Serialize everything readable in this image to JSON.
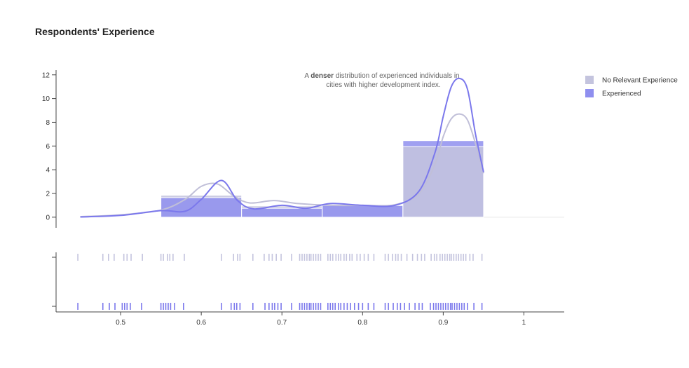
{
  "chart_data": {
    "type": "histogram+kde+rug",
    "title": "Respondents' Experience",
    "colors": {
      "No Relevant Experience": "#c4c4de",
      "Experienced": "#8f8fef",
      "kde_no_relevant": "#c0bfd8",
      "kde_experienced": "#7b78ec"
    },
    "x_axis": {
      "range": [
        0.42,
        1.05
      ],
      "ticks": [
        "0.5",
        "0.6",
        "0.7",
        "0.8",
        "0.9",
        "1"
      ]
    },
    "y_axis": {
      "range": [
        -0.6,
        12.4
      ],
      "ticks": [
        "0",
        "2",
        "4",
        "6",
        "8",
        "10",
        "12"
      ]
    },
    "legend": {
      "position": "top-right",
      "items": [
        {
          "label": "No Relevant Experience",
          "color": "#c4c4de"
        },
        {
          "label": "Experienced",
          "color": "#8f8fef"
        }
      ]
    },
    "annotation": {
      "parts": [
        {
          "text": "A ",
          "bold": false
        },
        {
          "text": "denser",
          "bold": true
        },
        {
          "text": " distribution of experienced individuals in",
          "bold": false
        }
      ],
      "line2": "cities with higher development index."
    },
    "histogram": {
      "bins": [
        [
          0.45,
          0.55
        ],
        [
          0.55,
          0.65
        ],
        [
          0.65,
          0.75
        ],
        [
          0.75,
          0.85
        ],
        [
          0.85,
          0.95
        ]
      ],
      "series": [
        {
          "name": "No Relevant Experience",
          "values": [
            0.05,
            1.85,
            0.95,
            0.98,
            5.95
          ]
        },
        {
          "name": "Experienced",
          "values": [
            0.05,
            1.65,
            0.75,
            0.98,
            6.45
          ]
        }
      ]
    },
    "kde": [
      {
        "name": "No Relevant Experience",
        "x": [
          0.45,
          0.5,
          0.55,
          0.58,
          0.6,
          0.62,
          0.64,
          0.66,
          0.69,
          0.72,
          0.76,
          0.8,
          0.84,
          0.87,
          0.89,
          0.9,
          0.91,
          0.92,
          0.93,
          0.94,
          0.95
        ],
        "y": [
          0.05,
          0.2,
          0.6,
          1.5,
          2.6,
          2.8,
          1.8,
          1.2,
          1.4,
          1.15,
          1.0,
          1.0,
          1.05,
          2.0,
          4.5,
          6.8,
          8.3,
          8.7,
          8.2,
          6.2,
          3.7
        ]
      },
      {
        "name": "Experienced",
        "x": [
          0.45,
          0.5,
          0.55,
          0.58,
          0.6,
          0.625,
          0.645,
          0.665,
          0.7,
          0.73,
          0.76,
          0.8,
          0.84,
          0.87,
          0.89,
          0.9,
          0.91,
          0.92,
          0.93,
          0.94,
          0.95
        ],
        "y": [
          0.02,
          0.15,
          0.55,
          0.5,
          1.5,
          3.1,
          1.4,
          0.7,
          1.0,
          0.75,
          1.15,
          1.0,
          1.0,
          2.2,
          5.5,
          8.5,
          11.0,
          11.7,
          10.8,
          7.0,
          3.8
        ]
      }
    ],
    "rug": [
      {
        "name": "No Relevant Experience",
        "x": [
          0.447,
          0.478,
          0.485,
          0.492,
          0.504,
          0.508,
          0.513,
          0.527,
          0.55,
          0.553,
          0.558,
          0.561,
          0.565,
          0.579,
          0.625,
          0.64,
          0.645,
          0.648,
          0.664,
          0.678,
          0.684,
          0.688,
          0.693,
          0.699,
          0.712,
          0.722,
          0.725,
          0.728,
          0.731,
          0.734,
          0.736,
          0.739,
          0.742,
          0.745,
          0.748,
          0.757,
          0.76,
          0.763,
          0.767,
          0.77,
          0.773,
          0.777,
          0.78,
          0.784,
          0.787,
          0.793,
          0.797,
          0.802,
          0.807,
          0.814,
          0.828,
          0.832,
          0.837,
          0.841,
          0.844,
          0.848,
          0.855,
          0.862,
          0.868,
          0.873,
          0.877,
          0.885,
          0.889,
          0.892,
          0.896,
          0.899,
          0.902,
          0.905,
          0.908,
          0.91,
          0.913,
          0.916,
          0.919,
          0.922,
          0.925,
          0.928,
          0.933,
          0.937,
          0.948
        ]
      },
      {
        "name": "Experienced",
        "x": [
          0.447,
          0.478,
          0.486,
          0.493,
          0.502,
          0.505,
          0.508,
          0.512,
          0.526,
          0.55,
          0.553,
          0.556,
          0.559,
          0.562,
          0.567,
          0.578,
          0.625,
          0.637,
          0.641,
          0.644,
          0.648,
          0.664,
          0.679,
          0.684,
          0.688,
          0.691,
          0.695,
          0.699,
          0.712,
          0.722,
          0.725,
          0.728,
          0.731,
          0.734,
          0.736,
          0.739,
          0.742,
          0.745,
          0.748,
          0.757,
          0.76,
          0.763,
          0.766,
          0.77,
          0.773,
          0.777,
          0.781,
          0.785,
          0.79,
          0.795,
          0.8,
          0.807,
          0.814,
          0.828,
          0.832,
          0.838,
          0.843,
          0.847,
          0.852,
          0.858,
          0.865,
          0.87,
          0.874,
          0.884,
          0.888,
          0.891,
          0.894,
          0.897,
          0.9,
          0.903,
          0.906,
          0.909,
          0.911,
          0.914,
          0.917,
          0.92,
          0.923,
          0.926,
          0.93,
          0.938,
          0.948
        ]
      }
    ]
  }
}
